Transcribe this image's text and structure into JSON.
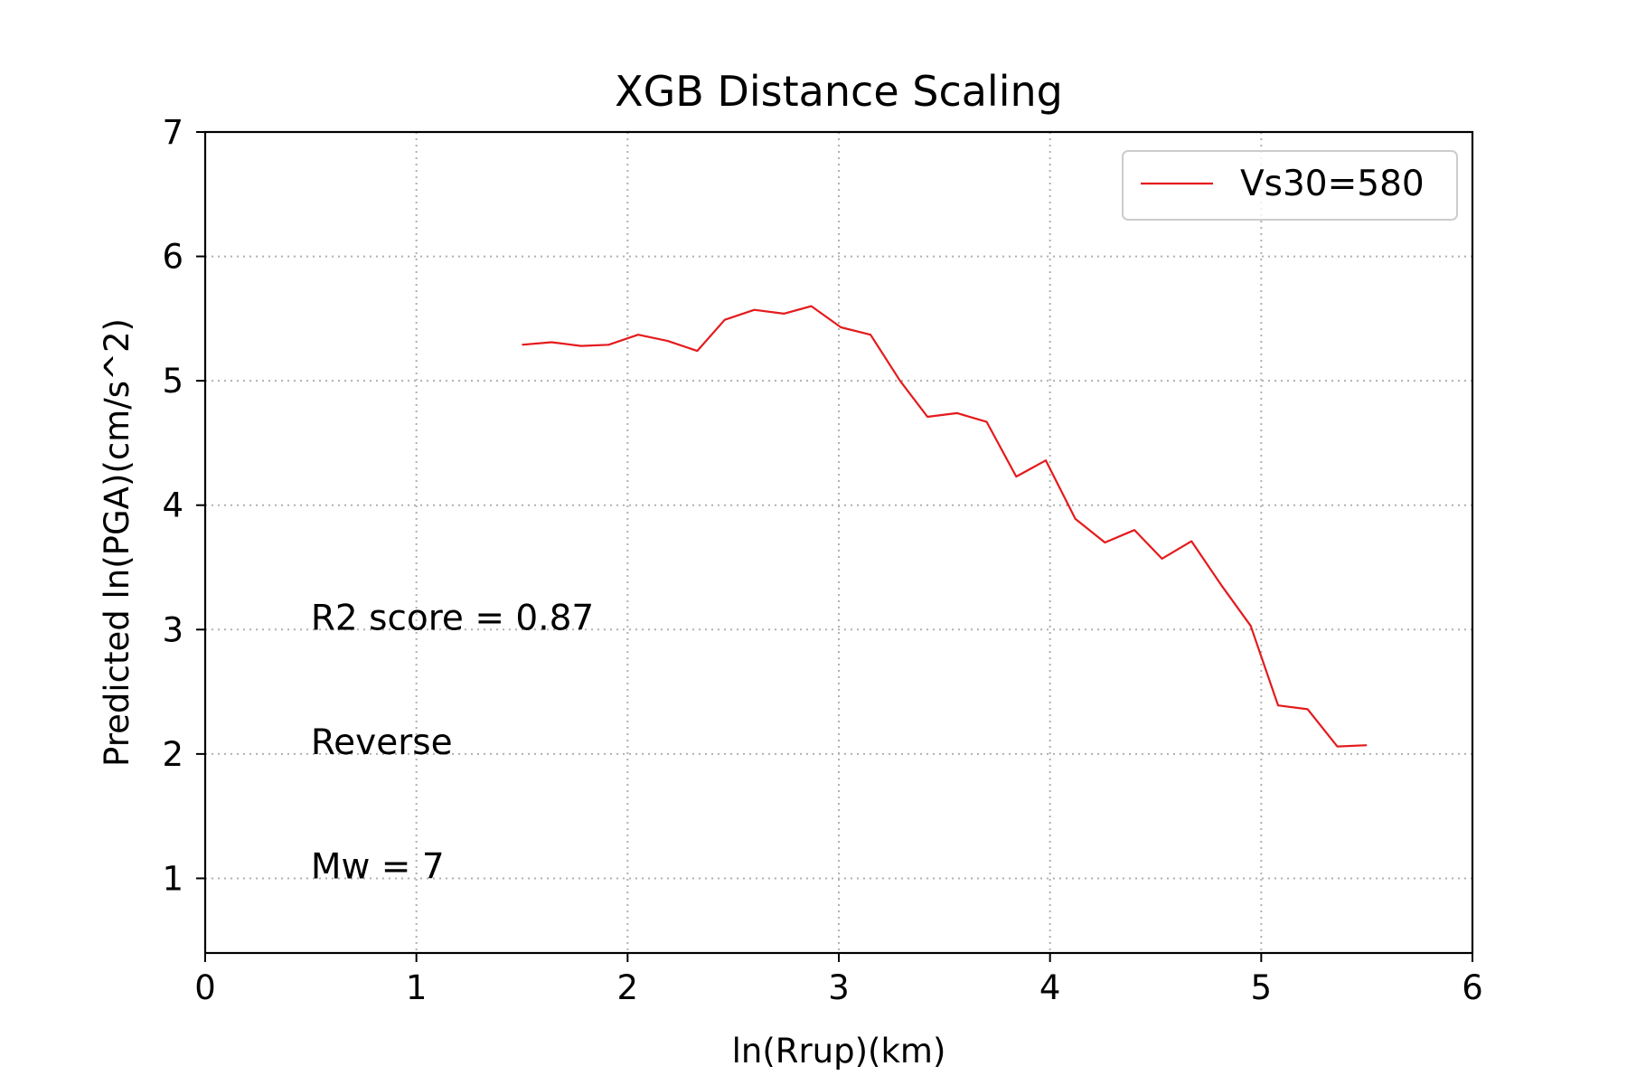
{
  "chart_data": {
    "type": "line",
    "title": "XGB Distance Scaling",
    "xlabel": "ln(Rrup)(km)",
    "ylabel": "Predicted ln(PGA)(cm/s^2)",
    "xlim": [
      0,
      6
    ],
    "ylim": [
      0.4,
      7
    ],
    "xticks": [
      0,
      1,
      2,
      3,
      4,
      5,
      6
    ],
    "yticks": [
      1,
      2,
      3,
      4,
      5,
      6,
      7
    ],
    "grid": true,
    "legend_position": "upper right",
    "series": [
      {
        "name": "Vs30=580",
        "color": "#e41a1c",
        "x": [
          1.5,
          1.64,
          1.78,
          1.91,
          2.05,
          2.19,
          2.33,
          2.46,
          2.6,
          2.74,
          2.87,
          3.01,
          3.15,
          3.29,
          3.42,
          3.56,
          3.7,
          3.84,
          3.98,
          4.12,
          4.26,
          4.4,
          4.53,
          4.67,
          4.81,
          4.95,
          5.08,
          5.22,
          5.36,
          5.5
        ],
        "y": [
          5.29,
          5.31,
          5.28,
          5.29,
          5.37,
          5.32,
          5.24,
          5.49,
          5.57,
          5.54,
          5.6,
          5.43,
          5.37,
          5.0,
          4.71,
          4.74,
          4.67,
          4.23,
          4.36,
          3.89,
          3.7,
          3.8,
          3.57,
          3.71,
          3.36,
          3.03,
          2.39,
          2.36,
          2.06,
          2.07
        ]
      }
    ],
    "annotations": [
      {
        "text": "R2 score = 0.87",
        "x": 0.5,
        "y": 3.0
      },
      {
        "text": "Reverse",
        "x": 0.5,
        "y": 2.0
      },
      {
        "text": "Mw = 7",
        "x": 0.5,
        "y": 1.0
      }
    ]
  }
}
